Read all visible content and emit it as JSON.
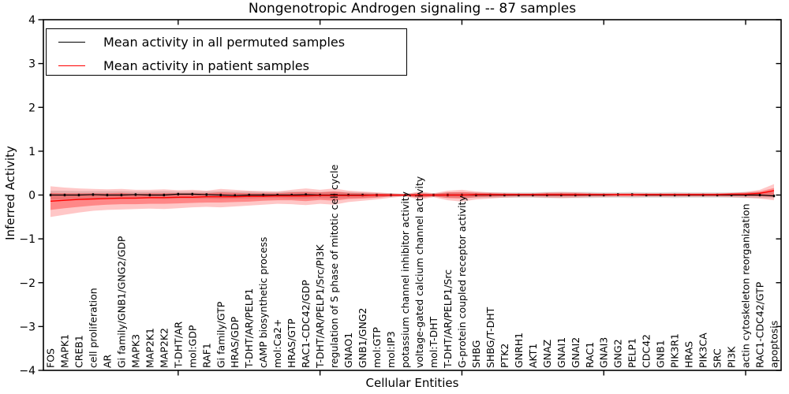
{
  "title": "Nongenotropic Androgen signaling -- 87 samples",
  "legend": {
    "items": [
      {
        "label": "Mean activity in all permuted samples",
        "color": "#000000"
      },
      {
        "label": "Mean activity in patient samples",
        "color": "#ff0000"
      }
    ]
  },
  "axes": {
    "x_label": "Cellular Entities",
    "y_label": "Inferred Activity",
    "y_ticks": [
      4,
      3,
      2,
      1,
      0,
      -1,
      -2,
      -3,
      -4
    ],
    "y_range": [
      -4,
      4
    ]
  },
  "colors": {
    "permuted_line": "#000000",
    "patient_line": "#ff0000",
    "permuted_band": "rgba(0,0,0,0.13)",
    "patient_band_outer": "rgba(255,0,0,0.22)",
    "patient_band_inner": "rgba(255,0,0,0.32)",
    "spine": "#000000"
  },
  "chart_data": {
    "type": "line",
    "title": "Nongenotropic Androgen signaling -- 87 samples",
    "xlabel": "Cellular Entities",
    "ylabel": "Inferred Activity",
    "ylim": [
      -4,
      4
    ],
    "grid": false,
    "legend_position": "upper left",
    "x_major_tick_indices": [
      9,
      19,
      29,
      39,
      49
    ],
    "categories": [
      "FOS",
      "MAPK1",
      "CREB1",
      "cell proliferation",
      "AR",
      "Gi family/GNB1/GNG2/GDP",
      "MAPK3",
      "MAP2K1",
      "MAP2K2",
      "T-DHT/AR",
      "mol:GDP",
      "RAF1",
      "Gi family/GTP",
      "HRAS/GDP",
      "T-DHT/AR/PELP1",
      "cAMP biosynthetic process",
      "mol:Ca2+",
      "HRAS/GTP",
      "RAC1-CDC42/GDP",
      "T-DHT/AR/PELP1/Src/PI3K",
      "regulation of S phase of mitotic cell cycle",
      "GNAO1",
      "GNB1/GNG2",
      "mol:GTP",
      "mol:IP3",
      "potassium channel inhibitor activity",
      "voltage-gated calcium channel activity",
      "mol:T-DHT",
      "T-DHT/AR/PELP1/Src",
      "G-protein coupled receptor activity",
      "SHBG",
      "SHBG/T-DHT",
      "PTK2",
      "GNRH1",
      "AKT1",
      "GNAZ",
      "GNAI1",
      "GNAI2",
      "RAC1",
      "GNAI3",
      "GNG2",
      "PELP1",
      "CDC42",
      "GNB1",
      "PIK3R1",
      "HRAS",
      "PIK3CA",
      "SRC",
      "PI3K",
      "actin cytoskeleton reorganization",
      "RAC1-CDC42/GTP",
      "apoptosis"
    ],
    "series": [
      {
        "name": "Mean activity in all permuted samples",
        "color": "#000000",
        "values": [
          0,
          0,
          0,
          0.01,
          0,
          0,
          0.01,
          0,
          0,
          0.02,
          0.02,
          0.01,
          0,
          -0.01,
          0,
          0,
          0,
          0,
          0.01,
          0,
          0,
          0,
          0,
          0,
          0,
          0,
          0,
          0,
          0,
          0,
          0,
          0,
          0,
          0,
          0,
          0,
          0,
          0,
          0,
          0,
          0.01,
          0.01,
          0,
          0,
          0,
          0,
          0,
          0,
          0,
          0,
          0,
          -0.02
        ]
      },
      {
        "name": "Mean activity in patient samples",
        "color": "#ff0000",
        "values": [
          -0.14,
          -0.12,
          -0.1,
          -0.09,
          -0.08,
          -0.07,
          -0.07,
          -0.06,
          -0.06,
          -0.05,
          -0.05,
          -0.04,
          -0.04,
          -0.04,
          -0.03,
          -0.03,
          -0.02,
          -0.02,
          -0.02,
          -0.01,
          -0.01,
          -0.01,
          -0.01,
          0,
          0,
          0,
          0,
          0,
          0,
          0,
          0.01,
          0.01,
          0.01,
          0.01,
          0.01,
          0.01,
          0.01,
          0.01,
          0.01,
          0.01,
          0.01,
          0.01,
          0.01,
          0.01,
          0.01,
          0.01,
          0.01,
          0.01,
          0.02,
          0.02,
          0.04,
          0.1
        ]
      }
    ],
    "bands": [
      {
        "name": "permuted-range",
        "low": [
          -0.1,
          -0.1,
          -0.09,
          -0.09,
          -0.09,
          -0.09,
          -0.08,
          -0.08,
          -0.09,
          -0.08,
          -0.08,
          -0.08,
          -0.09,
          -0.08,
          -0.08,
          -0.07,
          -0.07,
          -0.08,
          -0.08,
          -0.07,
          -0.08,
          -0.07,
          -0.06,
          -0.05,
          -0.04,
          -0.03,
          -0.05,
          -0.04,
          -0.06,
          -0.06,
          -0.06,
          -0.06,
          -0.06,
          -0.06,
          -0.06,
          -0.07,
          -0.07,
          -0.07,
          -0.07,
          -0.06,
          -0.06,
          -0.07,
          -0.06,
          -0.06,
          -0.07,
          -0.06,
          -0.06,
          -0.06,
          -0.06,
          -0.07,
          -0.07,
          -0.07
        ],
        "high": [
          0.1,
          0.1,
          0.09,
          0.09,
          0.09,
          0.09,
          0.08,
          0.08,
          0.09,
          0.08,
          0.08,
          0.08,
          0.09,
          0.08,
          0.08,
          0.07,
          0.07,
          0.08,
          0.08,
          0.07,
          0.08,
          0.07,
          0.06,
          0.05,
          0.04,
          0.03,
          0.05,
          0.04,
          0.06,
          0.06,
          0.06,
          0.06,
          0.06,
          0.06,
          0.06,
          0.07,
          0.07,
          0.07,
          0.07,
          0.06,
          0.06,
          0.07,
          0.06,
          0.06,
          0.07,
          0.06,
          0.06,
          0.06,
          0.06,
          0.07,
          0.07,
          0.07
        ]
      },
      {
        "name": "patient-outer",
        "low": [
          -0.5,
          -0.45,
          -0.4,
          -0.36,
          -0.34,
          -0.33,
          -0.32,
          -0.31,
          -0.32,
          -0.3,
          -0.28,
          -0.27,
          -0.28,
          -0.26,
          -0.24,
          -0.22,
          -0.2,
          -0.21,
          -0.23,
          -0.2,
          -0.22,
          -0.16,
          -0.13,
          -0.1,
          -0.06,
          -0.03,
          -0.1,
          -0.05,
          -0.12,
          -0.15,
          -0.1,
          -0.08,
          -0.06,
          -0.05,
          -0.05,
          -0.06,
          -0.07,
          -0.06,
          -0.05,
          -0.05,
          -0.04,
          -0.04,
          -0.04,
          -0.04,
          -0.04,
          -0.04,
          -0.04,
          -0.04,
          -0.05,
          -0.06,
          -0.08,
          -0.12
        ],
        "high": [
          0.2,
          0.17,
          0.15,
          0.14,
          0.13,
          0.14,
          0.12,
          0.12,
          0.13,
          0.11,
          0.12,
          0.1,
          0.14,
          0.12,
          0.1,
          0.09,
          0.08,
          0.12,
          0.15,
          0.12,
          0.15,
          0.1,
          0.08,
          0.06,
          0.04,
          0.02,
          0.08,
          0.04,
          0.1,
          0.12,
          0.08,
          0.06,
          0.05,
          0.04,
          0.04,
          0.06,
          0.07,
          0.06,
          0.05,
          0.04,
          0.04,
          0.04,
          0.04,
          0.04,
          0.04,
          0.04,
          0.04,
          0.04,
          0.05,
          0.07,
          0.12,
          0.25
        ]
      },
      {
        "name": "patient-inner",
        "low": [
          -0.34,
          -0.3,
          -0.27,
          -0.24,
          -0.22,
          -0.21,
          -0.21,
          -0.2,
          -0.2,
          -0.19,
          -0.18,
          -0.17,
          -0.17,
          -0.16,
          -0.15,
          -0.13,
          -0.12,
          -0.12,
          -0.14,
          -0.11,
          -0.13,
          -0.09,
          -0.08,
          -0.06,
          -0.03,
          -0.02,
          -0.06,
          -0.03,
          -0.07,
          -0.08,
          -0.05,
          -0.04,
          -0.03,
          -0.02,
          -0.02,
          -0.03,
          -0.03,
          -0.03,
          -0.02,
          -0.02,
          -0.02,
          -0.02,
          -0.02,
          -0.02,
          -0.02,
          -0.02,
          -0.02,
          -0.02,
          -0.02,
          -0.02,
          -0.03,
          -0.04
        ],
        "high": [
          0.05,
          0.04,
          0.04,
          0.04,
          0.04,
          0.05,
          0.03,
          0.04,
          0.04,
          0.04,
          0.04,
          0.04,
          0.06,
          0.05,
          0.04,
          0.04,
          0.04,
          0.06,
          0.07,
          0.06,
          0.08,
          0.05,
          0.04,
          0.03,
          0.02,
          0.01,
          0.04,
          0.02,
          0.06,
          0.07,
          0.05,
          0.04,
          0.03,
          0.03,
          0.03,
          0.04,
          0.04,
          0.04,
          0.03,
          0.03,
          0.03,
          0.03,
          0.03,
          0.03,
          0.03,
          0.03,
          0.03,
          0.03,
          0.04,
          0.05,
          0.08,
          0.16
        ]
      }
    ]
  }
}
